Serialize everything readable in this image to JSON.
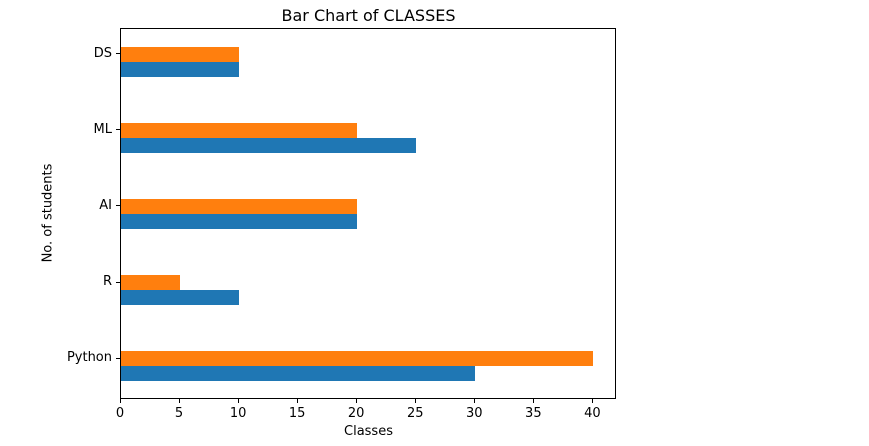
{
  "chart_data": {
    "type": "bar",
    "orientation": "horizontal",
    "title": "Bar Chart of CLASSES",
    "xlabel": "Classes",
    "ylabel": "No. of students",
    "categories": [
      "DS",
      "ML",
      "AI",
      "R",
      "Python"
    ],
    "series": [
      {
        "name": "orange",
        "color": "#ff7f0e",
        "values": [
          10,
          20,
          20,
          5,
          40
        ]
      },
      {
        "name": "blue",
        "color": "#1f77b4",
        "values": [
          10,
          25,
          20,
          10,
          30
        ]
      }
    ],
    "xticks": [
      0,
      5,
      10,
      15,
      20,
      25,
      30,
      35,
      40
    ],
    "xlim": [
      0,
      42
    ],
    "grid": false,
    "legend": "none",
    "category_order": "top-to-bottom",
    "axis_color": "#000000",
    "background_color": "#ffffff"
  }
}
